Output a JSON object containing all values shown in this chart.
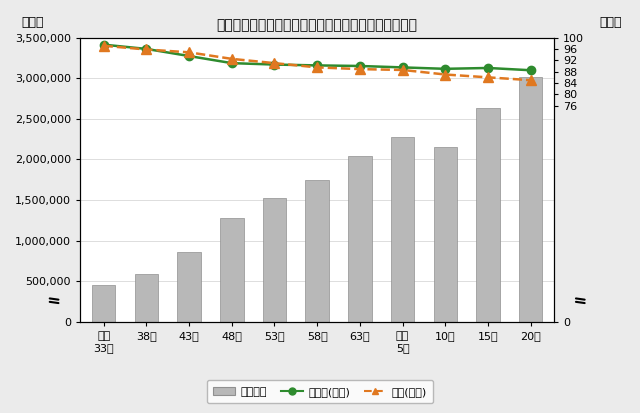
{
  "title": "総住宅数と住宅総数に対する「居住世帯有り」の割合",
  "ylabel_left": "（戸）",
  "ylabel_right": "（％）",
  "categories": [
    "昭和\n33年",
    "38年",
    "43年",
    "48年",
    "53年",
    "58年",
    "63年",
    "平成\n5年",
    "10年",
    "15年",
    "20年"
  ],
  "bar_values": [
    450000,
    590000,
    860000,
    1280000,
    1530000,
    1750000,
    2040000,
    2280000,
    2150000,
    2630000,
    3010000
  ],
  "saitama_values": [
    97.5,
    96.0,
    93.5,
    91.0,
    90.5,
    90.2,
    90.0,
    89.5,
    89.0,
    89.3,
    88.5
  ],
  "national_values": [
    97.1,
    95.8,
    94.8,
    92.5,
    91.0,
    89.5,
    88.9,
    88.6,
    87.0,
    86.0,
    85.0
  ],
  "bar_color": "#b8b8b8",
  "bar_edgecolor": "#909090",
  "saitama_color": "#2e8b2e",
  "national_color": "#e07820",
  "ylim_left": [
    0,
    3500000
  ],
  "ylim_right": [
    0,
    100
  ],
  "yticks_left": [
    0,
    500000,
    1000000,
    1500000,
    2000000,
    2500000,
    3000000,
    3500000
  ],
  "yticks_right": [
    0,
    76,
    80,
    84,
    88,
    92,
    96,
    100
  ],
  "background_color": "#ebebeb",
  "plot_bg_color": "#ffffff",
  "legend_labels": [
    "総住宅数",
    "埼玉県(割合)",
    "全国(割合)"
  ],
  "title_fontsize": 10,
  "tick_fontsize": 8,
  "legend_fontsize": 8
}
